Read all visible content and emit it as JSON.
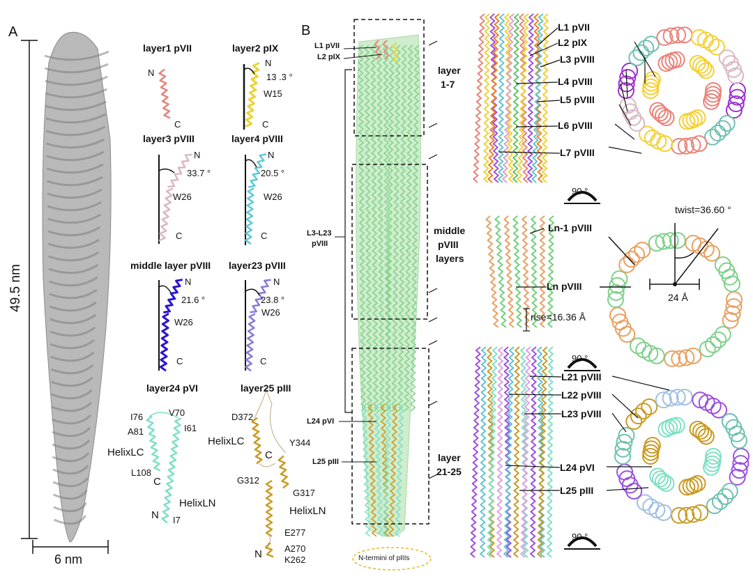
{
  "panel_a": {
    "letter": "A",
    "height_label": "49.5 nm",
    "width_label": "6 nm",
    "subunits": [
      {
        "title": "layer1 pVII",
        "n": "N",
        "c": "C"
      },
      {
        "title": "layer2 pIX",
        "n": "N",
        "c": "C",
        "angle": "13 .3 °",
        "residue": "W15"
      },
      {
        "title": "layer3 pVIII",
        "n": "N",
        "c": "C",
        "angle": "33.7 °",
        "residue": "W26"
      },
      {
        "title": "layer4 pVIII",
        "n": "N",
        "c": "C",
        "angle": "20.5 °",
        "residue": "W26"
      },
      {
        "title": "middle layer pVIII",
        "n": "N",
        "c": "C",
        "angle": "21.6 °",
        "residue": "W26"
      },
      {
        "title": "layer23 pVIII",
        "n": "N",
        "c": "C",
        "angle": "23.8 °",
        "residue": "W26"
      },
      {
        "title": "layer24 pVI",
        "n": "N",
        "c": "C",
        "residues": [
          "I76",
          "V70",
          "A81",
          "I61",
          "HelixLC",
          "L108",
          "HelixLN",
          "I7"
        ]
      },
      {
        "title": "layer25 pIII",
        "n": "N",
        "c": "C",
        "residues": [
          "D372",
          "HelixLC",
          "Y344",
          "G312",
          "G317",
          "HelixLN",
          "E277",
          "A270",
          "K262"
        ]
      }
    ],
    "colors": {
      "pVII": "#e8837a",
      "pIX": "#e8d43a",
      "layer3": "#d9b8c4",
      "layer4": "#5fc8d6",
      "middle": "#2a16d0",
      "layer23": "#8a78d8",
      "pVI": "#7ee0c4",
      "pIII": "#c99a22"
    }
  },
  "panel_b": {
    "letter": "B",
    "left_labels": [
      "L1 pVII",
      "L2 pIX",
      "L3-L23",
      "pVIII",
      "L24 pVI",
      "L25 pIII"
    ],
    "boxes": [
      {
        "label_1": "layer",
        "label_2": "1-7"
      },
      {
        "label_1": "middle",
        "label_2": "pVIII",
        "label_3": "layers"
      },
      {
        "label_1": "layer",
        "label_2": "21-25"
      }
    ],
    "termini_label": "N-termini of pIIIs",
    "top_labels": [
      "L1 pVII",
      "L2 pIX",
      "L3 pVIII",
      "L4 pVIII",
      "L5 pVIII",
      "L6 pVIII",
      "L7 pVIII"
    ],
    "middle_labels": [
      "Ln-1 pVIII",
      "Ln pVIII"
    ],
    "rise": "rise=16.36 Å",
    "twist": "twist=36.60 °",
    "diameter": "24 Å",
    "bottom_labels": [
      "L21 pVIII",
      "L22 pVIII",
      "L23 pVIII",
      "L24 pVI",
      "L25 pIII"
    ],
    "rotation": "90 °"
  }
}
